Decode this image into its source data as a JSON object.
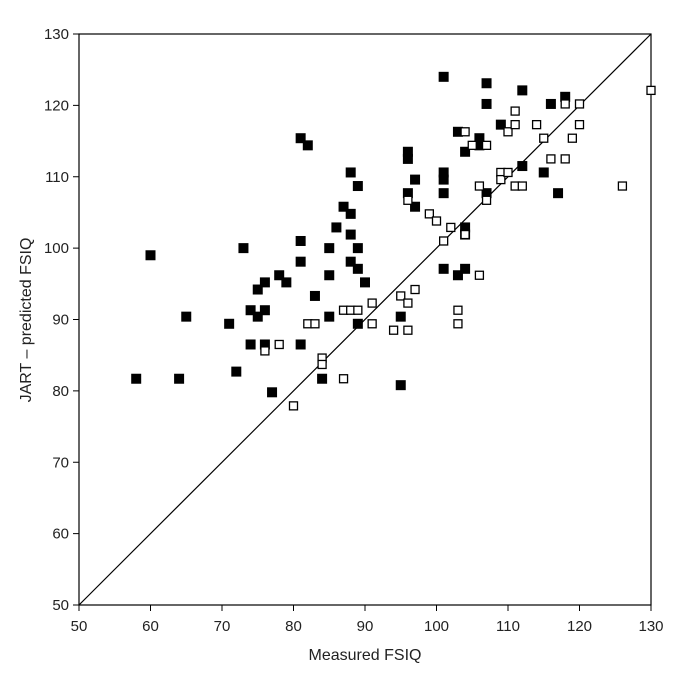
{
  "chart_data": {
    "type": "scatter",
    "title": "",
    "xlabel": "Measured FSIQ",
    "ylabel": "JART – predicted FSIQ",
    "xlim": [
      50,
      130
    ],
    "ylim": [
      50,
      130
    ],
    "x_ticks": [
      "50",
      "60",
      "70",
      "80",
      "90",
      "100",
      "110",
      "120",
      "130"
    ],
    "y_ticks": [
      "50",
      "60",
      "70",
      "80",
      "90",
      "100",
      "110",
      "120",
      "130"
    ],
    "grid": false,
    "legend": "none",
    "reference_line": {
      "from": [
        50,
        50
      ],
      "to": [
        130,
        130
      ]
    },
    "series": [
      {
        "marker": "filled-square",
        "color": "#000000",
        "points": [
          [
            58,
            81.7
          ],
          [
            60,
            99
          ],
          [
            64,
            81.7
          ],
          [
            65,
            90.4
          ],
          [
            71,
            89.4
          ],
          [
            72,
            82.7
          ],
          [
            73,
            100
          ],
          [
            74,
            91.3
          ],
          [
            74,
            86.5
          ],
          [
            75,
            94.2
          ],
          [
            75,
            90.4
          ],
          [
            76,
            95.2
          ],
          [
            76,
            91.3
          ],
          [
            76,
            86.5
          ],
          [
            77,
            79.8
          ],
          [
            78,
            96.2
          ],
          [
            79,
            95.2
          ],
          [
            81,
            115.4
          ],
          [
            81,
            101
          ],
          [
            81,
            98.1
          ],
          [
            81,
            86.5
          ],
          [
            82,
            114.4
          ],
          [
            83,
            93.3
          ],
          [
            84,
            81.7
          ],
          [
            85,
            100
          ],
          [
            85,
            96.2
          ],
          [
            85,
            90.4
          ],
          [
            86,
            102.9
          ],
          [
            87,
            105.8
          ],
          [
            88,
            110.6
          ],
          [
            88,
            104.8
          ],
          [
            88,
            101.9
          ],
          [
            88,
            98.1
          ],
          [
            89,
            108.7
          ],
          [
            89,
            100
          ],
          [
            89,
            97.1
          ],
          [
            89,
            89.4
          ],
          [
            90,
            95.2
          ],
          [
            95,
            80.8
          ],
          [
            95,
            90.4
          ],
          [
            96,
            113.5
          ],
          [
            96,
            112.5
          ],
          [
            96,
            107.7
          ],
          [
            97,
            109.6
          ],
          [
            97,
            105.8
          ],
          [
            101,
            124
          ],
          [
            101,
            110.6
          ],
          [
            101,
            109.6
          ],
          [
            101,
            107.7
          ],
          [
            101,
            97.1
          ],
          [
            103,
            116.3
          ],
          [
            103,
            96.2
          ],
          [
            104,
            113.5
          ],
          [
            104,
            102.9
          ],
          [
            104,
            101.9
          ],
          [
            104,
            97.1
          ],
          [
            106,
            115.4
          ],
          [
            106,
            114.4
          ],
          [
            107,
            123.1
          ],
          [
            107,
            120.2
          ],
          [
            107,
            107.7
          ],
          [
            109,
            117.3
          ],
          [
            112,
            122.1
          ],
          [
            112,
            111.5
          ],
          [
            115,
            110.6
          ],
          [
            116,
            120.2
          ],
          [
            117,
            107.7
          ],
          [
            118,
            121.2
          ]
        ]
      },
      {
        "marker": "open-square",
        "color": "#000000",
        "points": [
          [
            76,
            85.6
          ],
          [
            78,
            86.5
          ],
          [
            80,
            77.9
          ],
          [
            82,
            89.4
          ],
          [
            83,
            89.4
          ],
          [
            84,
            84.6
          ],
          [
            84,
            83.7
          ],
          [
            87,
            81.7
          ],
          [
            87,
            91.3
          ],
          [
            88,
            91.3
          ],
          [
            89,
            91.3
          ],
          [
            91,
            92.3
          ],
          [
            91,
            89.4
          ],
          [
            94,
            88.5
          ],
          [
            95,
            93.3
          ],
          [
            96,
            92.3
          ],
          [
            96,
            88.5
          ],
          [
            97,
            94.2
          ],
          [
            96,
            106.7
          ],
          [
            99,
            104.8
          ],
          [
            100,
            103.8
          ],
          [
            101,
            101
          ],
          [
            102,
            102.9
          ],
          [
            103,
            91.3
          ],
          [
            103,
            89.4
          ],
          [
            104,
            101.9
          ],
          [
            104,
            116.3
          ],
          [
            105,
            114.4
          ],
          [
            106,
            108.7
          ],
          [
            106,
            96.2
          ],
          [
            107,
            114.4
          ],
          [
            107,
            106.7
          ],
          [
            109,
            110.6
          ],
          [
            109,
            109.6
          ],
          [
            110,
            116.3
          ],
          [
            110,
            110.6
          ],
          [
            111,
            119.2
          ],
          [
            111,
            117.3
          ],
          [
            111,
            108.7
          ],
          [
            112,
            108.7
          ],
          [
            114,
            117.3
          ],
          [
            115,
            115.4
          ],
          [
            116,
            112.5
          ],
          [
            118,
            120.2
          ],
          [
            118,
            112.5
          ],
          [
            119,
            115.4
          ],
          [
            120,
            120.2
          ],
          [
            120,
            117.3
          ],
          [
            126,
            108.7
          ],
          [
            130,
            122.1
          ]
        ]
      }
    ]
  }
}
